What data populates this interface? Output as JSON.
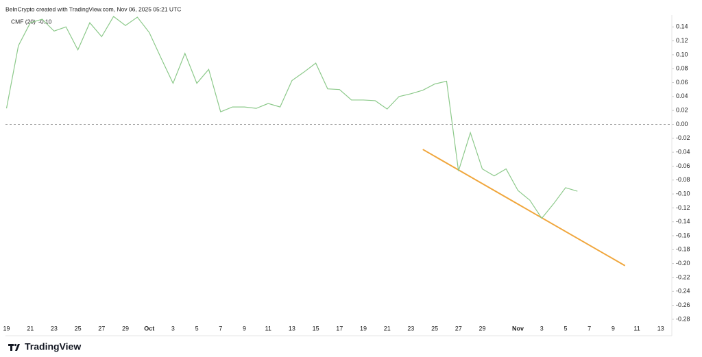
{
  "header": {
    "title": "BeInCrypto created with TradingView.com, Nov 06, 2025 05:21 UTC"
  },
  "footer": {
    "brand": "TradingView"
  },
  "chart_data": {
    "type": "line",
    "categories": [
      "19",
      null,
      "21",
      null,
      "23",
      null,
      "25",
      null,
      "27",
      null,
      "29",
      null,
      "Oct",
      null,
      "3",
      null,
      "5",
      null,
      "7",
      null,
      "9",
      null,
      "11",
      null,
      "13",
      null,
      "15",
      null,
      "17",
      null,
      "19",
      null,
      "21",
      null,
      "23",
      null,
      "25",
      null,
      "27",
      null,
      "29",
      null,
      null,
      "Nov",
      null,
      "3",
      null,
      "5",
      null,
      "7",
      null,
      "9",
      null,
      "11",
      null,
      "13"
    ],
    "series": [
      {
        "name": "CMF (20)",
        "color": "#8cc98a",
        "last_label": {
          "value": -0.1,
          "label": "-0.10"
        },
        "values": [
          0.023,
          0.113,
          0.146,
          0.151,
          0.134,
          0.14,
          0.107,
          0.146,
          0.126,
          0.155,
          0.142,
          0.154,
          0.132,
          0.095,
          0.059,
          0.102,
          0.059,
          0.079,
          0.018,
          0.025,
          0.025,
          0.023,
          0.03,
          0.025,
          0.063,
          0.075,
          0.088,
          0.051,
          0.05,
          0.035,
          0.035,
          0.034,
          0.022,
          0.04,
          0.044,
          0.049,
          0.058,
          0.062,
          -0.067,
          -0.012,
          -0.064,
          -0.074,
          -0.064,
          -0.095,
          -0.109,
          -0.135,
          -0.114,
          -0.091,
          -0.096,
          null,
          null,
          null,
          null,
          null,
          null,
          null
        ]
      }
    ],
    "trendline": {
      "color": "#f0a63c",
      "x": [
        35,
        52
      ],
      "values": [
        -0.036,
        -0.203
      ]
    },
    "zero_line": 0,
    "ylim": [
      -0.284,
      0.157
    ],
    "yticks": [
      0.14,
      0.12,
      {
        "value": 0.1,
        "label": "0.10"
      },
      0.08,
      0.06,
      0.04,
      0.02,
      {
        "value": 0,
        "label": "0.00"
      },
      -0.02,
      -0.04,
      -0.06,
      -0.08,
      {
        "value": -0.1,
        "label": "-0.10"
      },
      -0.12,
      -0.14,
      -0.16,
      -0.18,
      {
        "value": -0.2,
        "label": "-0.20"
      },
      -0.22,
      -0.24,
      -0.26,
      -0.28
    ]
  }
}
